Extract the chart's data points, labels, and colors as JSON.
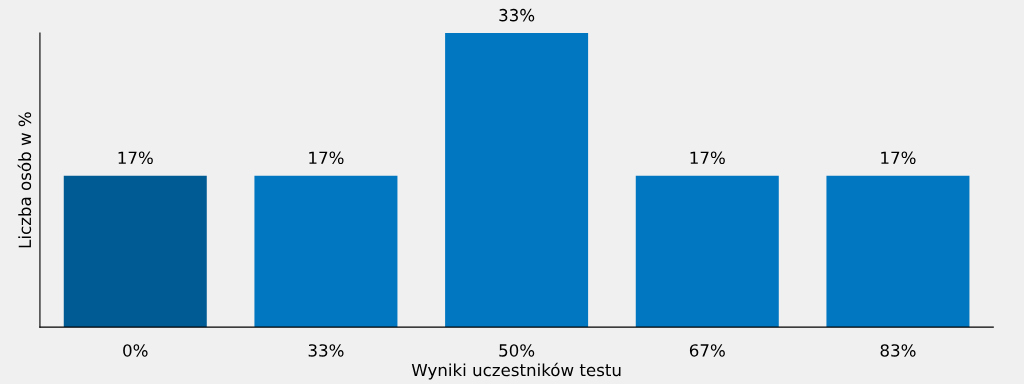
{
  "chart_data": {
    "type": "bar",
    "xlabel": "Wyniki uczestników testu",
    "ylabel": "Liczba osób w %",
    "categories": [
      "0%",
      "33%",
      "50%",
      "67%",
      "83%"
    ],
    "values": [
      17,
      17,
      33,
      17,
      17
    ],
    "value_labels": [
      "17%",
      "17%",
      "33%",
      "17%",
      "17%"
    ],
    "colors": [
      "#005b94",
      "#0077c0",
      "#0077c0",
      "#0077c0",
      "#0077c0"
    ],
    "grid": false
  }
}
